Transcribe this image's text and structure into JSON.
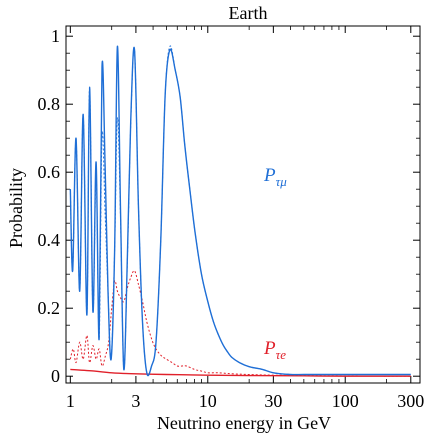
{
  "chart_data": {
    "type": "line",
    "title": "Earth",
    "xlabel": "Neutrino energy in GeV",
    "ylabel": "Probability",
    "xscale": "log",
    "xlim": [
      0.93,
      350
    ],
    "ylim": [
      -0.02,
      1.03
    ],
    "xticks": [
      1,
      3,
      10,
      30,
      100,
      300
    ],
    "xtick_labels": [
      "1",
      "3",
      "10",
      "30",
      "100",
      "300"
    ],
    "yticks": [
      0,
      0.2,
      0.4,
      0.6,
      0.8,
      1
    ],
    "ytick_labels": [
      "0",
      "0.2",
      "0.4",
      "0.6",
      "0.8",
      "1"
    ],
    "grid": false,
    "colors": {
      "blue": "#1f6fd6",
      "red": "#e0202a"
    },
    "series": [
      {
        "name": "Pτμ",
        "label_main": "P",
        "label_sub": "τμ",
        "color": "#1f6fd6",
        "style": "solid",
        "x": [
          1.0,
          1.04,
          1.1,
          1.17,
          1.24,
          1.32,
          1.38,
          1.46,
          1.54,
          1.62,
          1.7,
          1.79,
          1.88,
          1.98,
          2.1,
          2.2,
          2.32,
          2.45,
          2.6,
          2.75,
          2.93,
          3.13,
          3.35,
          3.6,
          3.9,
          4.2,
          4.55,
          4.9,
          5.3,
          5.8,
          6.3,
          6.8,
          7.4,
          8.1,
          9.0,
          10.0,
          11.0,
          12.0,
          13.0,
          14.0,
          15.0,
          17.0,
          20.0,
          25.0,
          30.0,
          40.0,
          50.0,
          70.0,
          100.0,
          150.0,
          200.0,
          300.0
        ],
        "y": [
          0.55,
          0.31,
          0.7,
          0.25,
          0.77,
          0.18,
          0.85,
          0.19,
          0.63,
          0.11,
          0.91,
          0.62,
          0.25,
          0.05,
          0.37,
          0.97,
          0.48,
          0.02,
          0.35,
          0.75,
          0.96,
          0.5,
          0.16,
          0.01,
          0.03,
          0.1,
          0.4,
          0.83,
          0.96,
          0.9,
          0.82,
          0.68,
          0.55,
          0.42,
          0.3,
          0.22,
          0.16,
          0.12,
          0.09,
          0.07,
          0.055,
          0.04,
          0.028,
          0.02,
          0.01,
          0.005,
          0.005,
          0.005,
          0.005,
          0.005,
          0.005,
          0.005
        ]
      },
      {
        "name": "Pτμ (dotted)",
        "color": "#1f6fd6",
        "style": "dotted",
        "x": [
          1.0,
          1.04,
          1.1,
          1.17,
          1.24,
          1.32,
          1.38,
          1.46,
          1.54,
          1.62,
          1.7,
          1.79,
          1.88,
          1.98,
          2.1,
          2.2,
          2.32,
          2.45,
          2.6,
          2.75,
          2.93,
          3.13,
          3.35,
          3.6,
          3.9,
          4.2,
          4.55,
          4.9,
          5.3,
          5.8,
          6.3,
          6.8,
          7.4,
          8.1,
          9.0,
          10.0,
          11.0,
          12.0,
          13.0,
          14.0,
          15.0,
          17.0,
          20.0,
          25.0,
          30.0,
          40.0,
          50.0,
          70.0,
          100.0,
          150.0,
          200.0,
          300.0
        ],
        "y": [
          0.55,
          0.31,
          0.7,
          0.25,
          0.77,
          0.18,
          0.85,
          0.19,
          0.6,
          0.11,
          0.71,
          0.48,
          0.25,
          0.05,
          0.37,
          0.76,
          0.46,
          0.02,
          0.34,
          0.74,
          0.96,
          0.5,
          0.16,
          0.01,
          0.03,
          0.1,
          0.4,
          0.83,
          0.97,
          0.9,
          0.82,
          0.68,
          0.55,
          0.42,
          0.3,
          0.22,
          0.16,
          0.12,
          0.09,
          0.07,
          0.055,
          0.04,
          0.028,
          0.02,
          0.01,
          0.005,
          0.005,
          0.005,
          0.005,
          0.005,
          0.005,
          0.005
        ]
      },
      {
        "name": "Pτe",
        "label_main": "P",
        "label_sub": "τe",
        "color": "#e0202a",
        "style": "solid",
        "x": [
          1.0,
          1.5,
          2.0,
          3.0,
          5.0,
          7.0,
          10.0,
          20.0,
          50.0,
          100.0,
          300.0
        ],
        "y": [
          0.02,
          0.015,
          0.01,
          0.007,
          0.005,
          0.004,
          0.003,
          0.002,
          0.001,
          0.0,
          0.0
        ]
      },
      {
        "name": "Pτe (dotted)",
        "color": "#e0202a",
        "style": "dotted",
        "x": [
          1.0,
          1.05,
          1.1,
          1.17,
          1.24,
          1.32,
          1.38,
          1.46,
          1.54,
          1.62,
          1.7,
          1.8,
          1.9,
          2.0,
          2.1,
          2.2,
          2.32,
          2.45,
          2.6,
          2.75,
          2.93,
          3.13,
          3.35,
          3.6,
          3.9,
          4.2,
          4.6,
          5.0,
          5.5,
          6.0,
          6.5,
          7.0,
          8.0,
          9.0,
          10.0,
          11.0,
          12.0,
          14.0,
          17.0,
          20.0,
          30.0,
          50.0,
          100.0,
          300.0
        ],
        "y": [
          0.05,
          0.08,
          0.04,
          0.1,
          0.05,
          0.12,
          0.04,
          0.09,
          0.05,
          0.08,
          0.03,
          0.06,
          0.1,
          0.2,
          0.28,
          0.25,
          0.23,
          0.22,
          0.26,
          0.29,
          0.31,
          0.27,
          0.22,
          0.16,
          0.11,
          0.08,
          0.06,
          0.05,
          0.04,
          0.03,
          0.03,
          0.03,
          0.02,
          0.015,
          0.01,
          0.01,
          0.01,
          0.008,
          0.006,
          0.005,
          0.003,
          0.002,
          0.001,
          0.0
        ]
      }
    ]
  }
}
